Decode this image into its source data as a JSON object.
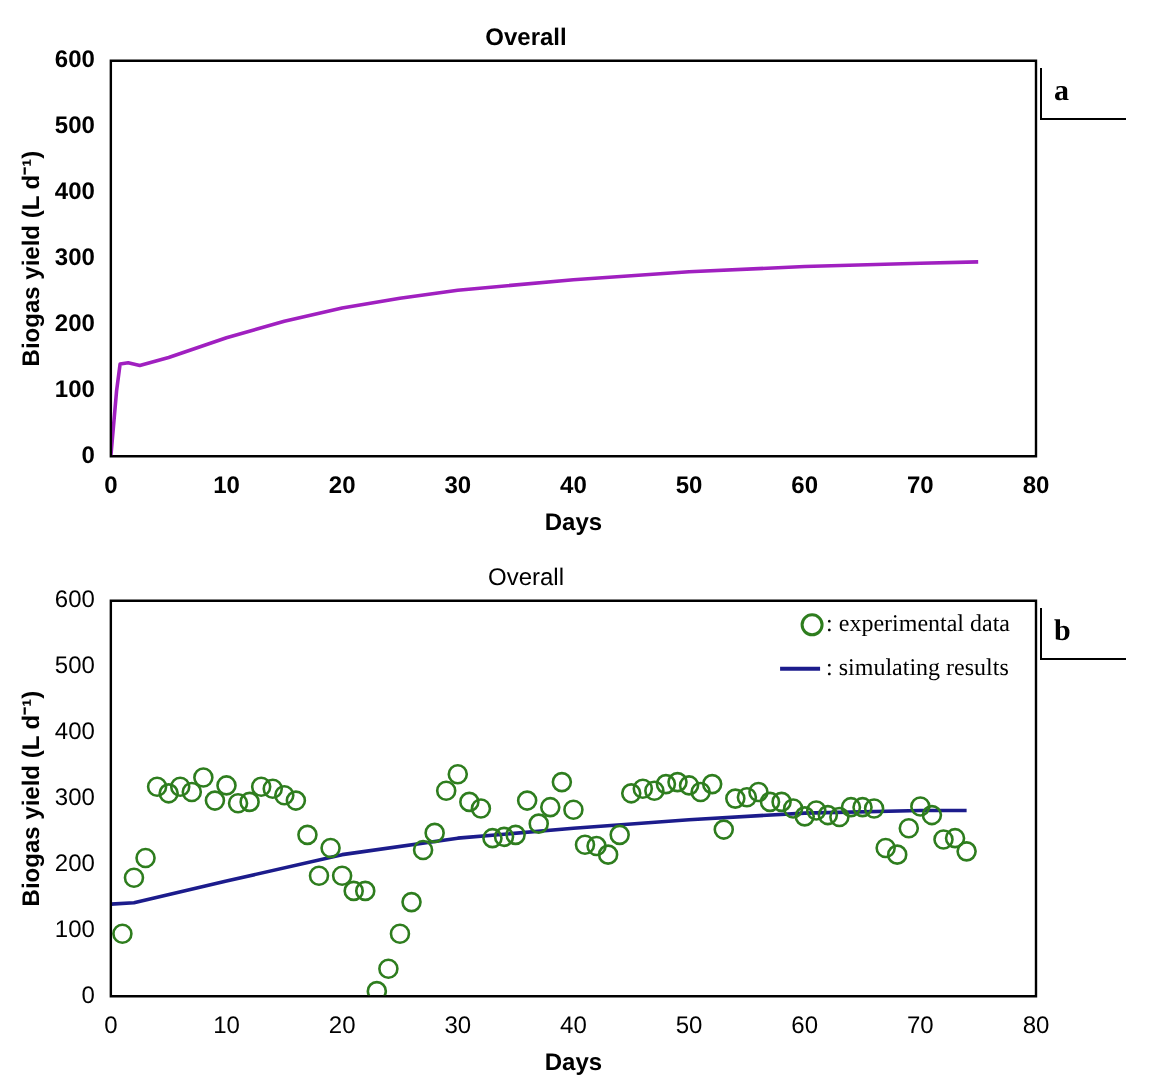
{
  "chart_data": [
    {
      "type": "line",
      "title": "Overall",
      "xlabel": "Days",
      "ylabel": "Biogas yield (L d⁻¹)",
      "xlim": [
        0,
        80
      ],
      "xticks": [
        0,
        10,
        20,
        30,
        40,
        50,
        60,
        70,
        80
      ],
      "ylim": [
        0,
        600
      ],
      "yticks": [
        0,
        100,
        200,
        300,
        400,
        500,
        600
      ],
      "grid": false,
      "legend": false,
      "marker": "none",
      "annotations": [
        "a"
      ],
      "series": [
        {
          "type": "line",
          "color": "#a020c0",
          "x": [
            0,
            0.5,
            0.8,
            1.5,
            2.5,
            5,
            10,
            15,
            20,
            25,
            30,
            40,
            50,
            60,
            70,
            75
          ],
          "values": [
            0,
            100,
            140,
            142,
            138,
            150,
            180,
            205,
            225,
            240,
            252,
            268,
            280,
            288,
            293,
            295
          ]
        }
      ]
    },
    {
      "type": "scatter",
      "title": "Overall",
      "xlabel": "Days",
      "ylabel": "Biogas yield (L d⁻¹)",
      "xlim": [
        0,
        80
      ],
      "xticks": [
        0,
        10,
        20,
        30,
        40,
        50,
        60,
        70,
        80
      ],
      "ylim": [
        0,
        600
      ],
      "yticks": [
        0,
        100,
        200,
        300,
        400,
        500,
        600
      ],
      "grid": false,
      "legend": "top right",
      "annotations": [
        "b"
      ],
      "series": [
        {
          "type": "scatter",
          "name": ": experimental data",
          "color": "#2e7d1e",
          "marker": "circle",
          "x": [
            1,
            2,
            3,
            4,
            5,
            6,
            7,
            8,
            9,
            10,
            11,
            12,
            13,
            14,
            15,
            16,
            17,
            18,
            19,
            20,
            21,
            22,
            23,
            24,
            25,
            26,
            27,
            28,
            29,
            30,
            31,
            32,
            33,
            34,
            35,
            36,
            37,
            38,
            39,
            40,
            41,
            42,
            43,
            44,
            45,
            46,
            47,
            48,
            49,
            50,
            51,
            52,
            53,
            54,
            55,
            56,
            57,
            58,
            59,
            60,
            61,
            62,
            63,
            64,
            65,
            66,
            67,
            68,
            69,
            70,
            71,
            72,
            73,
            74
          ],
          "values": [
            95,
            180,
            210,
            318,
            308,
            318,
            310,
            332,
            297,
            320,
            293,
            295,
            318,
            315,
            305,
            297,
            245,
            183,
            225,
            183,
            160,
            160,
            8,
            42,
            95,
            143,
            222,
            248,
            312,
            337,
            295,
            285,
            240,
            242,
            245,
            297,
            262,
            287,
            325,
            283,
            230,
            228,
            215,
            245,
            308,
            315,
            312,
            322,
            325,
            320,
            310,
            322,
            253,
            300,
            302,
            310,
            295,
            295,
            285,
            273,
            282,
            275,
            272,
            287,
            287,
            285,
            225,
            215,
            255,
            288,
            275,
            238,
            240,
            220
          ]
        },
        {
          "type": "line",
          "name": ": simulating results",
          "color": "#1c1c8c",
          "marker": "none",
          "x": [
            0,
            2,
            10,
            20,
            30,
            40,
            50,
            60,
            70,
            74
          ],
          "values": [
            140,
            142,
            175,
            215,
            240,
            255,
            268,
            278,
            282,
            282
          ]
        }
      ]
    }
  ]
}
